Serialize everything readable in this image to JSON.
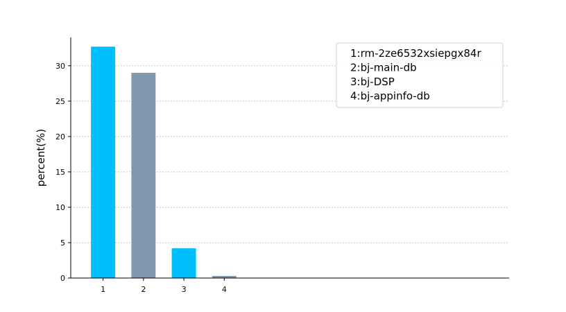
{
  "chart_data": {
    "type": "bar",
    "title": "",
    "xlabel": "",
    "ylabel": "percent(%)",
    "categories": [
      "1",
      "2",
      "3",
      "4"
    ],
    "values": [
      32.7,
      29.0,
      4.2,
      0.3
    ],
    "bar_colors": [
      "#00bfff",
      "#8497b0",
      "#00bfff",
      "#8497b0"
    ],
    "ylim": [
      0,
      34
    ],
    "yticks": [
      0,
      5,
      10,
      15,
      20,
      25,
      30
    ],
    "xlim": [
      0.2,
      11.05
    ],
    "grid": "y-dotted",
    "legend": {
      "position": "top-right",
      "entries": [
        "1:rm-2ze6532xsiepgx84r",
        "2:bj-main-db",
        "3:bj-DSP",
        "4:bj-appinfo-db"
      ]
    }
  }
}
